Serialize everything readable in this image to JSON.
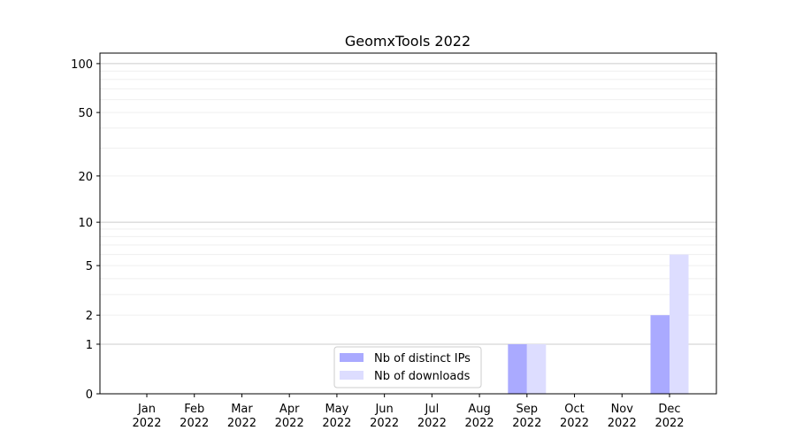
{
  "chart_data": {
    "type": "bar",
    "title": "GeomxTools 2022",
    "xlabel": "",
    "ylabel": "",
    "yscale": "symlog (log of 1+y)",
    "ylim": [
      0,
      116
    ],
    "yticks": [
      0,
      1,
      2,
      5,
      10,
      20,
      50,
      100
    ],
    "grid": true,
    "legend_position": "lower center",
    "categories": [
      "Jan\n2022",
      "Feb\n2022",
      "Mar\n2022",
      "Apr\n2022",
      "May\n2022",
      "Jun\n2022",
      "Jul\n2022",
      "Aug\n2022",
      "Sep\n2022",
      "Oct\n2022",
      "Nov\n2022",
      "Dec\n2022"
    ],
    "series": [
      {
        "name": "Nb of distinct IPs",
        "color": "#aaaaff",
        "values": [
          0,
          0,
          0,
          0,
          0,
          0,
          0,
          0,
          1,
          0,
          0,
          2
        ]
      },
      {
        "name": "Nb of downloads",
        "color": "#ddddff",
        "values": [
          0,
          0,
          0,
          0,
          0,
          0,
          0,
          0,
          1,
          0,
          0,
          6
        ]
      }
    ]
  }
}
